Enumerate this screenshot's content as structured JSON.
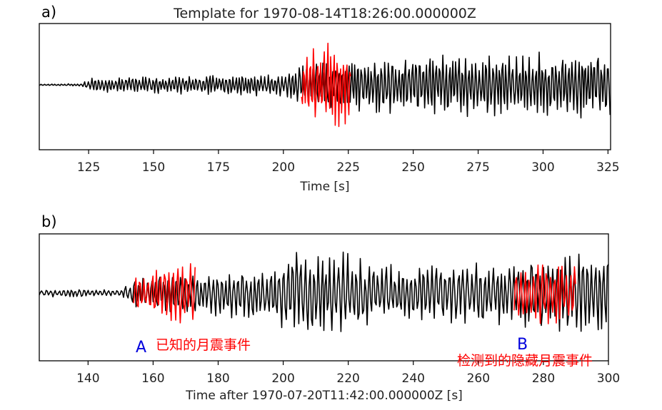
{
  "colors": {
    "trace": "#000000",
    "highlight": "#ff0000",
    "blue": "#0000dd"
  },
  "chart_data": [
    {
      "type": "line",
      "panel_label": "a)",
      "title": "Template for 1970-08-14T18:26:00.000000Z",
      "xlabel": "Time [s]",
      "ylabel": "",
      "xlim": [
        106,
        326
      ],
      "xticks": [
        125,
        150,
        175,
        200,
        225,
        250,
        275,
        300,
        325
      ],
      "series": [
        {
          "name": "",
          "color": "#000000",
          "x_range": [
            106,
            326
          ],
          "envelope": [
            [
              106,
              0.01
            ],
            [
              122,
              0.02
            ],
            [
              126,
              0.12
            ],
            [
              200,
              0.2
            ],
            [
              206,
              0.3
            ],
            [
              226,
              0.45
            ],
            [
              260,
              0.5
            ],
            [
              326,
              0.55
            ]
          ]
        },
        {
          "name": "",
          "color": "#ff0000",
          "x_range": [
            207,
            226
          ],
          "envelope": [
            [
              207,
              0.55
            ],
            [
              218,
              0.75
            ],
            [
              226,
              0.6
            ]
          ]
        }
      ]
    },
    {
      "type": "line",
      "panel_label": "b)",
      "title": "",
      "xlabel": "Time after 1970-07-20T11:42:00.000000Z [s]",
      "ylabel": "",
      "xlim": [
        125,
        300
      ],
      "xticks": [
        140,
        160,
        180,
        200,
        220,
        240,
        260,
        280,
        300
      ],
      "series": [
        {
          "name": "",
          "color": "#000000",
          "x_range": [
            125,
            300
          ],
          "envelope": [
            [
              125,
              0.06
            ],
            [
              150,
              0.06
            ],
            [
              155,
              0.3
            ],
            [
              175,
              0.35
            ],
            [
              195,
              0.45
            ],
            [
              208,
              0.75
            ],
            [
              240,
              0.45
            ],
            [
              255,
              0.55
            ],
            [
              300,
              0.7
            ]
          ]
        },
        {
          "name": "",
          "color": "#ff0000",
          "x_range": [
            154,
            173
          ],
          "envelope": [
            [
              154,
              0.3
            ],
            [
              162,
              0.45
            ],
            [
              173,
              0.5
            ]
          ]
        },
        {
          "name": "",
          "color": "#ff0000",
          "x_range": [
            271,
            290
          ],
          "envelope": [
            [
              271,
              0.4
            ],
            [
              282,
              0.55
            ],
            [
              290,
              0.5
            ]
          ]
        }
      ],
      "annotations": [
        {
          "letter": "A",
          "text": "已知的月震事件"
        },
        {
          "letter": "B",
          "text": "检测到的隐藏月震事件"
        }
      ]
    }
  ]
}
